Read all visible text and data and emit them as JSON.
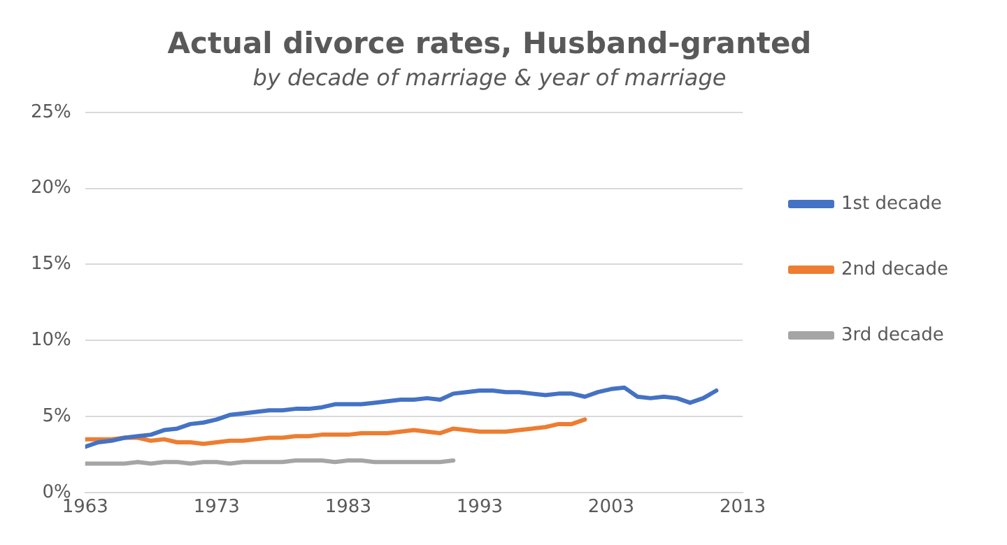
{
  "chart_data": {
    "type": "line",
    "title": "Actual divorce rates, Husband-granted",
    "subtitle": "by decade of marriage & year of marriage",
    "x": [
      1963,
      1964,
      1965,
      1966,
      1967,
      1968,
      1969,
      1970,
      1971,
      1972,
      1973,
      1974,
      1975,
      1976,
      1977,
      1978,
      1979,
      1980,
      1981,
      1982,
      1983,
      1984,
      1985,
      1986,
      1987,
      1988,
      1989,
      1990,
      1991,
      1992,
      1993,
      1994,
      1995,
      1996,
      1997,
      1998,
      1999,
      2000,
      2001,
      2002,
      2003,
      2004,
      2005,
      2006,
      2007,
      2008,
      2009,
      2010,
      2011
    ],
    "series": [
      {
        "name": "1st decade",
        "color": "#4472c4",
        "values": [
          3.0,
          3.3,
          3.4,
          3.6,
          3.7,
          3.8,
          4.1,
          4.2,
          4.5,
          4.6,
          4.8,
          5.1,
          5.2,
          5.3,
          5.4,
          5.4,
          5.5,
          5.5,
          5.6,
          5.8,
          5.8,
          5.8,
          5.9,
          6.0,
          6.1,
          6.1,
          6.2,
          6.1,
          6.5,
          6.6,
          6.7,
          6.7,
          6.6,
          6.6,
          6.5,
          6.4,
          6.5,
          6.5,
          6.3,
          6.6,
          6.8,
          6.9,
          6.3,
          6.2,
          6.3,
          6.2,
          5.9,
          6.2,
          6.7
        ]
      },
      {
        "name": "2nd decade",
        "color": "#ed7d31",
        "values": [
          3.5,
          3.5,
          3.5,
          3.6,
          3.6,
          3.4,
          3.5,
          3.3,
          3.3,
          3.2,
          3.3,
          3.4,
          3.4,
          3.5,
          3.6,
          3.6,
          3.7,
          3.7,
          3.8,
          3.8,
          3.8,
          3.9,
          3.9,
          3.9,
          4.0,
          4.1,
          4.0,
          3.9,
          4.2,
          4.1,
          4.0,
          4.0,
          4.0,
          4.1,
          4.2,
          4.3,
          4.5,
          4.5,
          4.8,
          null,
          null,
          null,
          null,
          null,
          null,
          null,
          null,
          null,
          null
        ]
      },
      {
        "name": "3rd decade",
        "color": "#a5a5a5",
        "values": [
          1.9,
          1.9,
          1.9,
          1.9,
          2.0,
          1.9,
          2.0,
          2.0,
          1.9,
          2.0,
          2.0,
          1.9,
          2.0,
          2.0,
          2.0,
          2.0,
          2.1,
          2.1,
          2.1,
          2.0,
          2.1,
          2.1,
          2.0,
          2.0,
          2.0,
          2.0,
          2.0,
          2.0,
          2.1,
          null,
          null,
          null,
          null,
          null,
          null,
          null,
          null,
          null,
          null,
          null,
          null,
          null,
          null,
          null,
          null,
          null,
          null,
          null,
          null
        ]
      }
    ],
    "xlim": [
      1963,
      2013
    ],
    "xticks": [
      1963,
      1973,
      1983,
      1993,
      2003,
      2013
    ],
    "ylim": [
      0,
      25
    ],
    "yticks": [
      {
        "value": 0,
        "label": "0%"
      },
      {
        "value": 5,
        "label": "5%"
      },
      {
        "value": 10,
        "label": "10%"
      },
      {
        "value": 15,
        "label": "15%"
      },
      {
        "value": 20,
        "label": "20%"
      },
      {
        "value": 25,
        "label": "25%"
      }
    ],
    "grid": "y",
    "legend": "right",
    "marker": "none",
    "line_style": "solid"
  }
}
